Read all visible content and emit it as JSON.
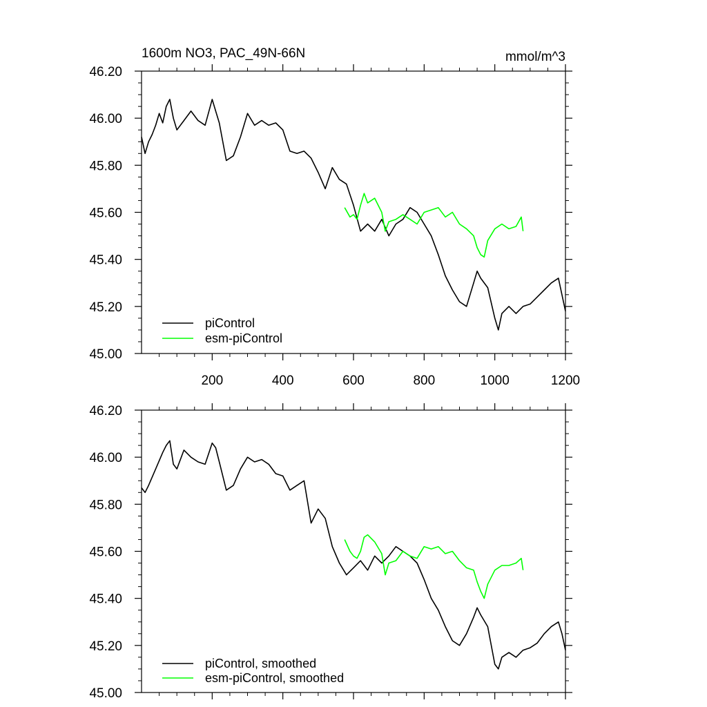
{
  "chart_data": [
    {
      "type": "line",
      "title": "1600m NO3, PAC_49N-66N",
      "units": "mmol/m^3",
      "xlim": [
        0,
        1200
      ],
      "ylim": [
        45.0,
        46.2
      ],
      "xticks": [
        200,
        400,
        600,
        800,
        1000,
        1200
      ],
      "xtick_labels": [
        "200",
        "400",
        "600",
        "800",
        "1000",
        "1200"
      ],
      "yticks": [
        45.0,
        45.2,
        45.4,
        45.6,
        45.8,
        46.0,
        46.2
      ],
      "ytick_labels": [
        "45.00",
        "45.20",
        "45.40",
        "45.60",
        "45.80",
        "46.00",
        "46.20"
      ],
      "legend_position": "bottom-left",
      "series": [
        {
          "name": "piControl",
          "color": "#000000",
          "x": [
            0,
            10,
            20,
            30,
            40,
            50,
            60,
            70,
            80,
            90,
            100,
            120,
            140,
            160,
            180,
            200,
            210,
            220,
            240,
            260,
            280,
            300,
            320,
            340,
            360,
            380,
            400,
            420,
            440,
            460,
            480,
            500,
            520,
            540,
            560,
            580,
            600,
            620,
            640,
            660,
            680,
            700,
            720,
            740,
            760,
            780,
            800,
            820,
            840,
            860,
            880,
            900,
            920,
            940,
            950,
            960,
            980,
            1000,
            1010,
            1020,
            1040,
            1060,
            1080,
            1100,
            1120,
            1140,
            1160,
            1180,
            1190,
            1200
          ],
          "y": [
            45.92,
            45.85,
            45.9,
            45.93,
            45.97,
            46.02,
            45.98,
            46.05,
            46.08,
            46.0,
            45.95,
            45.99,
            46.03,
            45.99,
            45.97,
            46.08,
            46.03,
            45.98,
            45.82,
            45.84,
            45.92,
            46.02,
            45.97,
            45.99,
            45.97,
            45.98,
            45.95,
            45.86,
            45.85,
            45.86,
            45.83,
            45.77,
            45.7,
            45.79,
            45.74,
            45.72,
            45.63,
            45.52,
            45.55,
            45.52,
            45.57,
            45.5,
            45.55,
            45.57,
            45.62,
            45.6,
            45.55,
            45.5,
            45.42,
            45.33,
            45.27,
            45.22,
            45.2,
            45.3,
            45.35,
            45.32,
            45.28,
            45.15,
            45.1,
            45.17,
            45.2,
            45.17,
            45.2,
            45.21,
            45.24,
            45.27,
            45.3,
            45.32,
            45.25,
            45.18
          ]
        },
        {
          "name": "esm-piControl",
          "color": "#00ff00",
          "x": [
            575,
            590,
            600,
            610,
            620,
            630,
            640,
            660,
            680,
            690,
            700,
            720,
            740,
            760,
            780,
            800,
            820,
            840,
            860,
            880,
            900,
            920,
            940,
            950,
            960,
            970,
            980,
            1000,
            1020,
            1040,
            1060,
            1075,
            1080
          ],
          "y": [
            45.62,
            45.58,
            45.59,
            45.57,
            45.63,
            45.68,
            45.64,
            45.66,
            45.6,
            45.52,
            45.56,
            45.57,
            45.59,
            45.57,
            45.55,
            45.6,
            45.61,
            45.62,
            45.58,
            45.6,
            45.55,
            45.53,
            45.5,
            45.45,
            45.42,
            45.41,
            45.48,
            45.53,
            45.55,
            45.53,
            45.54,
            45.58,
            45.52
          ]
        }
      ]
    },
    {
      "type": "line",
      "xlim": [
        0,
        1200
      ],
      "ylim": [
        45.0,
        46.2
      ],
      "xticks": [
        200,
        400,
        600,
        800,
        1000,
        1200
      ],
      "yticks": [
        45.0,
        45.2,
        45.4,
        45.6,
        45.8,
        46.0,
        46.2
      ],
      "ytick_labels": [
        "45.00",
        "45.20",
        "45.40",
        "45.60",
        "45.80",
        "46.00",
        "46.20"
      ],
      "legend_position": "bottom-left",
      "series": [
        {
          "name": "piControl, smoothed",
          "color": "#000000",
          "x": [
            0,
            10,
            20,
            40,
            60,
            70,
            80,
            90,
            100,
            120,
            140,
            160,
            180,
            200,
            210,
            220,
            240,
            260,
            280,
            300,
            320,
            340,
            360,
            380,
            400,
            420,
            440,
            460,
            480,
            500,
            520,
            540,
            560,
            580,
            600,
            620,
            640,
            660,
            680,
            700,
            720,
            740,
            760,
            780,
            800,
            820,
            840,
            860,
            880,
            900,
            920,
            940,
            950,
            960,
            980,
            1000,
            1010,
            1020,
            1040,
            1060,
            1080,
            1100,
            1120,
            1140,
            1160,
            1180,
            1190,
            1200
          ],
          "y": [
            45.87,
            45.85,
            45.88,
            45.95,
            46.02,
            46.05,
            46.07,
            45.97,
            45.95,
            46.03,
            46.0,
            45.98,
            45.97,
            46.06,
            46.04,
            45.98,
            45.86,
            45.88,
            45.95,
            46.0,
            45.98,
            45.99,
            45.97,
            45.93,
            45.92,
            45.86,
            45.88,
            45.9,
            45.72,
            45.78,
            45.74,
            45.62,
            45.55,
            45.5,
            45.53,
            45.56,
            45.52,
            45.58,
            45.55,
            45.58,
            45.62,
            45.6,
            45.58,
            45.55,
            45.48,
            45.4,
            45.35,
            45.28,
            45.22,
            45.2,
            45.25,
            45.32,
            45.36,
            45.33,
            45.28,
            45.12,
            45.1,
            45.15,
            45.17,
            45.15,
            45.18,
            45.19,
            45.21,
            45.25,
            45.28,
            45.3,
            45.25,
            45.18
          ]
        },
        {
          "name": "esm-piControl, smoothed",
          "color": "#00ff00",
          "x": [
            575,
            590,
            600,
            610,
            620,
            630,
            640,
            660,
            680,
            690,
            700,
            720,
            740,
            760,
            780,
            800,
            820,
            840,
            860,
            880,
            900,
            920,
            940,
            950,
            960,
            970,
            980,
            1000,
            1020,
            1040,
            1060,
            1075,
            1080
          ],
          "y": [
            45.65,
            45.6,
            45.58,
            45.57,
            45.6,
            45.66,
            45.67,
            45.64,
            45.59,
            45.5,
            45.55,
            45.56,
            45.6,
            45.58,
            45.57,
            45.62,
            45.61,
            45.62,
            45.59,
            45.6,
            45.56,
            45.53,
            45.52,
            45.47,
            45.43,
            45.4,
            45.46,
            45.52,
            45.54,
            45.54,
            45.55,
            45.57,
            45.52
          ]
        }
      ]
    }
  ]
}
